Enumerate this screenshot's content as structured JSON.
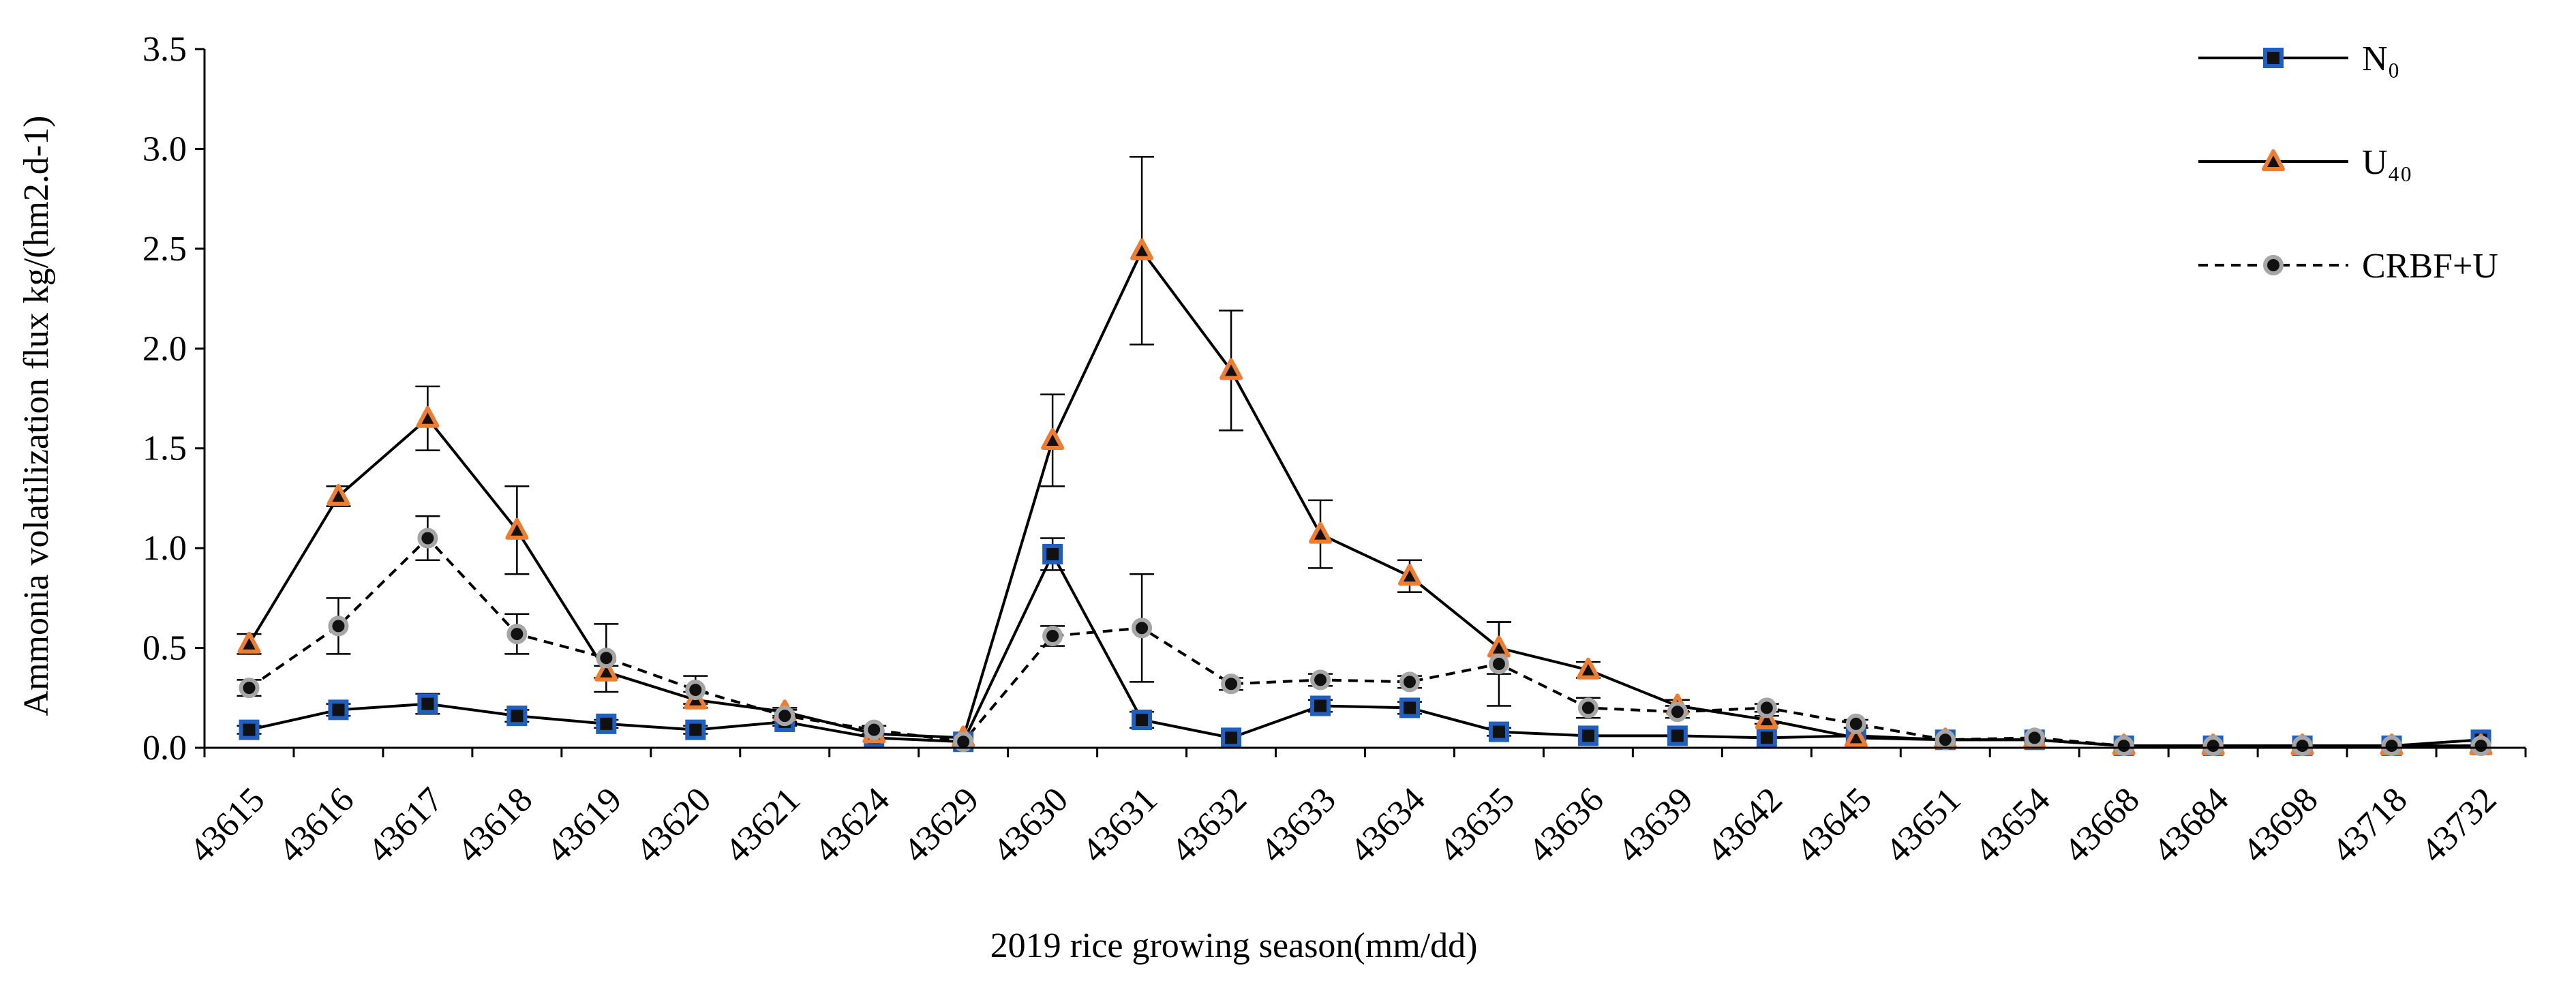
{
  "chart_data": {
    "type": "line",
    "title": "",
    "xlabel": "2019 rice growing season(mm/dd)",
    "ylabel": "Ammonia volatilization flux kg/(hm2.d-1)",
    "ylim": [
      0,
      3.5
    ],
    "yticks": [
      "0.0",
      "0.5",
      "1.0",
      "1.5",
      "2.0",
      "2.5",
      "3.0",
      "3.5"
    ],
    "grid": false,
    "legend_position": "top-right",
    "categories": [
      "43615",
      "43616",
      "43617",
      "43618",
      "43619",
      "43620",
      "43621",
      "43624",
      "43629",
      "43630",
      "43631",
      "43632",
      "43633",
      "43634",
      "43635",
      "43636",
      "43639",
      "43642",
      "43645",
      "43651",
      "43654",
      "43668",
      "43684",
      "43698",
      "43718",
      "43732"
    ],
    "series": [
      {
        "name": "N₀",
        "style": "solid",
        "marker": "square",
        "marker_fill": "#111111",
        "marker_edge": "#1f5fbf",
        "values": [
          0.09,
          0.19,
          0.22,
          0.16,
          0.12,
          0.09,
          0.13,
          0.05,
          0.03,
          0.97,
          0.14,
          0.05,
          0.21,
          0.2,
          0.08,
          0.06,
          0.06,
          0.05,
          0.06,
          0.04,
          0.04,
          0.01,
          0.01,
          0.01,
          0.01,
          0.04
        ],
        "errors": [
          0.02,
          0.03,
          0.05,
          0.03,
          0.02,
          0.02,
          0.02,
          0.01,
          0.01,
          0.08,
          0.04,
          0.01,
          0.03,
          0.03,
          0.02,
          0.01,
          0.01,
          0.01,
          0.01,
          0.01,
          0.01,
          0.005,
          0.005,
          0.005,
          0.005,
          0.01
        ]
      },
      {
        "name": "U₄₀",
        "style": "solid",
        "marker": "triangle",
        "marker_fill": "#111111",
        "marker_edge": "#ed7d31",
        "values": [
          0.52,
          1.26,
          1.65,
          1.09,
          0.38,
          0.24,
          0.18,
          0.07,
          0.05,
          1.54,
          2.49,
          1.89,
          1.07,
          0.86,
          0.5,
          0.39,
          0.21,
          0.14,
          0.05,
          0.04,
          0.04,
          0.01,
          0.01,
          0.01,
          0.01,
          0.01
        ],
        "errors": [
          0.05,
          0.05,
          0.16,
          0.22,
          0.03,
          0.04,
          0.02,
          0.01,
          0.01,
          0.23,
          0.47,
          0.3,
          0.17,
          0.08,
          0.13,
          0.04,
          0.03,
          0.02,
          0.01,
          0.01,
          0.01,
          0.005,
          0.005,
          0.005,
          0.005,
          0.005
        ]
      },
      {
        "name": "CRBF+U",
        "style": "dashed",
        "marker": "circle",
        "marker_fill": "#111111",
        "marker_edge": "#a6a6a6",
        "values": [
          0.3,
          0.61,
          1.05,
          0.57,
          0.45,
          0.29,
          0.16,
          0.09,
          0.03,
          0.56,
          0.6,
          0.32,
          0.34,
          0.33,
          0.42,
          0.2,
          0.18,
          0.2,
          0.12,
          0.04,
          0.05,
          0.01,
          0.01,
          0.01,
          0.01,
          0.01
        ],
        "errors": [
          0.04,
          0.14,
          0.11,
          0.1,
          0.17,
          0.07,
          0.03,
          0.02,
          0.01,
          0.05,
          0.27,
          0.03,
          0.03,
          0.03,
          0.21,
          0.05,
          0.03,
          0.02,
          0.02,
          0.01,
          0.01,
          0.005,
          0.005,
          0.005,
          0.005,
          0.005
        ]
      }
    ]
  }
}
